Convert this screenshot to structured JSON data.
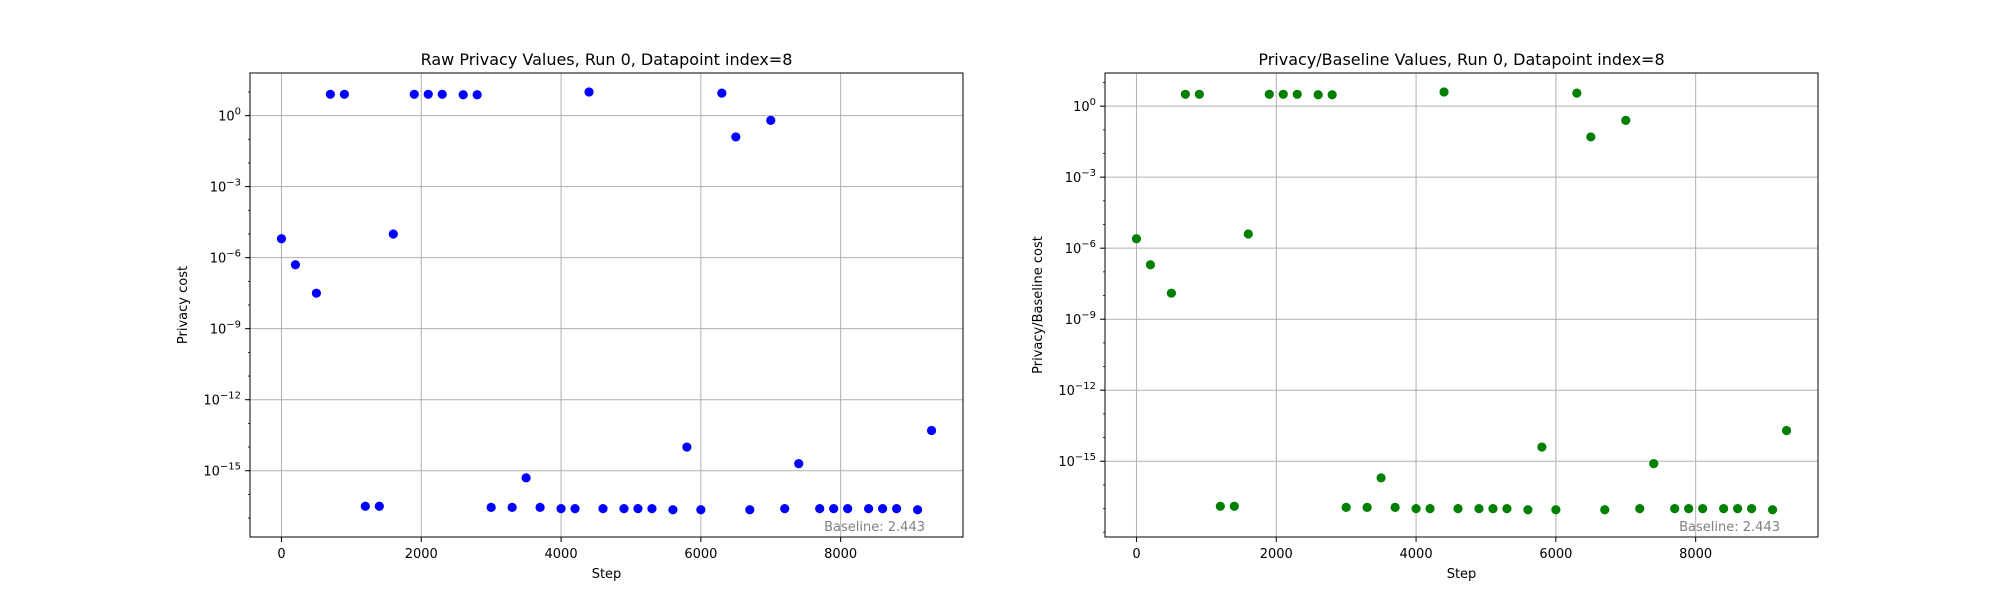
{
  "chart_data": [
    {
      "type": "scatter",
      "title": "Raw Privacy Values, Run 0, Datapoint index=8",
      "xlabel": "Step",
      "ylabel": "Privacy cost",
      "xlim": [
        -450,
        9750
      ],
      "ylim_log10": [
        -17.8,
        1.8
      ],
      "yscale": "log",
      "grid": true,
      "x_ticks": [
        0,
        2000,
        4000,
        6000,
        8000
      ],
      "y_ticks_exp": [
        0,
        -3,
        -6,
        -9,
        -12,
        -15
      ],
      "color": "#0000ff",
      "annotation": "Baseline: 2.443",
      "x": [
        0,
        200,
        500,
        700,
        900,
        1200,
        1400,
        1600,
        1900,
        2100,
        2300,
        2600,
        2800,
        3000,
        3300,
        3500,
        3700,
        4000,
        4200,
        4400,
        4600,
        4900,
        5100,
        5300,
        5600,
        5800,
        6000,
        6300,
        6500,
        6700,
        7000,
        7200,
        7400,
        7700,
        7900,
        8100,
        8400,
        8600,
        8800,
        9100,
        9300
      ],
      "y_log10": [
        -5.2,
        -6.3,
        -7.5,
        0.9,
        0.9,
        -16.5,
        -16.5,
        -5.0,
        0.9,
        0.9,
        0.9,
        0.88,
        0.88,
        -16.55,
        -16.55,
        -15.3,
        -16.55,
        -16.6,
        -16.6,
        1.0,
        -16.6,
        -16.6,
        -16.6,
        -16.6,
        -16.65,
        -14.0,
        -16.65,
        0.95,
        -0.9,
        -16.65,
        -0.2,
        -16.6,
        -14.7,
        -16.6,
        -16.6,
        -16.6,
        -16.6,
        -16.6,
        -16.6,
        -16.65,
        -13.3
      ]
    },
    {
      "type": "scatter",
      "title": "Privacy/Baseline Values, Run 0, Datapoint index=8",
      "xlabel": "Step",
      "ylabel": "Privacy/Baseline cost",
      "xlim": [
        -450,
        9750
      ],
      "ylim_log10": [
        -18.2,
        1.4
      ],
      "yscale": "log",
      "grid": true,
      "x_ticks": [
        0,
        2000,
        4000,
        6000,
        8000
      ],
      "y_ticks_exp": [
        0,
        -3,
        -6,
        -9,
        -12,
        -15
      ],
      "color": "#008000",
      "annotation": "Baseline: 2.443",
      "x": [
        0,
        200,
        500,
        700,
        900,
        1200,
        1400,
        1600,
        1900,
        2100,
        2300,
        2600,
        2800,
        3000,
        3300,
        3500,
        3700,
        4000,
        4200,
        4400,
        4600,
        4900,
        5100,
        5300,
        5600,
        5800,
        6000,
        6300,
        6500,
        6700,
        7000,
        7200,
        7400,
        7700,
        7900,
        8100,
        8400,
        8600,
        8800,
        9100,
        9300
      ],
      "y_log10": [
        -5.6,
        -6.7,
        -7.9,
        0.5,
        0.5,
        -16.9,
        -16.9,
        -5.4,
        0.5,
        0.5,
        0.5,
        0.48,
        0.48,
        -16.95,
        -16.95,
        -15.7,
        -16.95,
        -17.0,
        -17.0,
        0.6,
        -17.0,
        -17.0,
        -17.0,
        -17.0,
        -17.05,
        -14.4,
        -17.05,
        0.55,
        -1.3,
        -17.05,
        -0.6,
        -17.0,
        -15.1,
        -17.0,
        -17.0,
        -17.0,
        -17.0,
        -17.0,
        -17.0,
        -17.05,
        -13.7
      ]
    }
  ]
}
